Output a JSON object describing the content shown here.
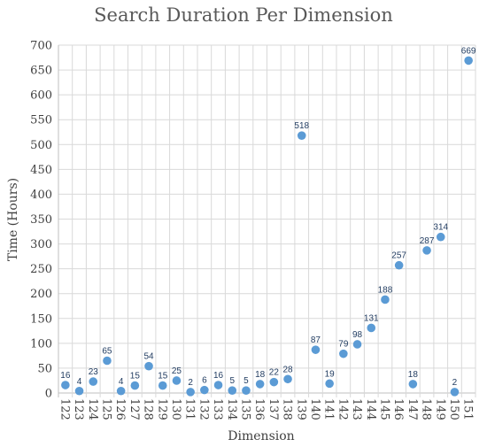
{
  "chart_data": {
    "type": "scatter",
    "title": "Search Duration Per Dimension",
    "xlabel": "Dimension",
    "ylabel": "Time (Hours)",
    "ylim": [
      0,
      700
    ],
    "yticks": [
      0,
      50,
      100,
      150,
      200,
      250,
      300,
      350,
      400,
      450,
      500,
      550,
      600,
      650,
      700
    ],
    "grid": true,
    "x": [
      122,
      123,
      124,
      125,
      126,
      127,
      128,
      129,
      130,
      131,
      132,
      133,
      134,
      135,
      136,
      137,
      138,
      139,
      140,
      141,
      142,
      143,
      144,
      145,
      146,
      147,
      148,
      149,
      150,
      151
    ],
    "y": [
      16,
      4,
      23,
      65,
      4,
      15,
      54,
      15,
      25,
      2,
      6,
      16,
      5,
      5,
      18,
      22,
      28,
      518,
      87,
      19,
      79,
      98,
      131,
      188,
      257,
      18,
      287,
      314,
      2,
      669
    ],
    "marker_color": "#5b9bd5",
    "label_color": "#1f3a5f"
  }
}
